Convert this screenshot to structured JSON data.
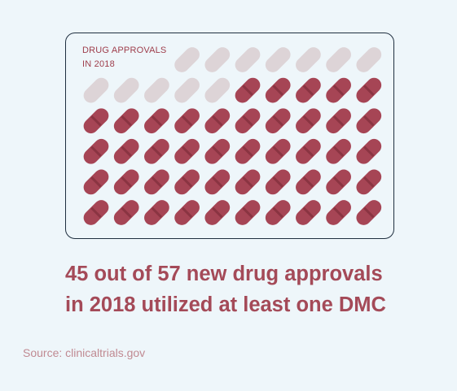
{
  "chart_data": {
    "type": "pictograph",
    "title_lines": [
      "DRUG APPROVALS",
      "IN 2018"
    ],
    "total": 57,
    "highlighted": 45,
    "unit": "pill",
    "colors": {
      "highlighted": "#a64555",
      "highlighted_stripe": "#8a3442",
      "other": "#ddd4d7"
    }
  },
  "headline": {
    "line1": "45 out of 57 new drug approvals",
    "line2": "in 2018 utilized at least one DMC"
  },
  "source": "Source: clinicaltrials.gov"
}
